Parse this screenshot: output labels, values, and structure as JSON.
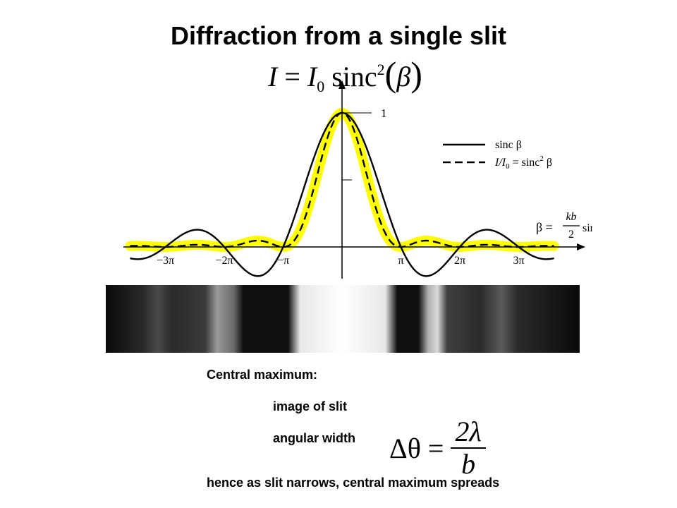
{
  "title": "Diffraction from a single slit",
  "formula": {
    "I": "I",
    "eq": " = ",
    "I0": "I",
    "sub0": "0",
    "sinc": " sinc",
    "sup2": "2",
    "beta": "β"
  },
  "chart_data": {
    "type": "line",
    "series": [
      {
        "name": "sinc β",
        "style": "solid",
        "function": "sinc(beta)"
      },
      {
        "name": "I/I0 = sinc² β",
        "style": "dashed",
        "function": "sinc(beta)^2"
      }
    ],
    "xlim": [
      -3.6,
      3.6
    ],
    "ylim": [
      -0.25,
      1.05
    ],
    "x_tick_labels": [
      "−3π",
      "−2π",
      "−π",
      "π",
      "2π",
      "3π"
    ],
    "x_tick_values": [
      -3,
      -2,
      -1,
      1,
      2,
      3
    ],
    "y_tick_labels": [
      "1"
    ],
    "highlight_color": "#ffff00"
  },
  "legend": {
    "solid": "sinc β",
    "dashed": "I/I",
    "dashed_sub": "0",
    "dashed_rest": " = sinc",
    "dashed_sup": "2",
    "dashed_beta": " β"
  },
  "beta_def": {
    "lhs": "β = ",
    "num": "kb",
    "den": "2",
    "rhs": "sin θ"
  },
  "notes": {
    "central_max": "Central maximum:",
    "image": "image of slit",
    "angular_width": "angular width",
    "conclusion": "hence as slit narrows, central maximum spreads"
  },
  "width_formula": {
    "delta": "Δθ",
    "eq": "=",
    "num": "2λ",
    "den": "b"
  },
  "colors": {
    "highlight": "#ffff00",
    "strip_bg": "#1a1a1a"
  }
}
